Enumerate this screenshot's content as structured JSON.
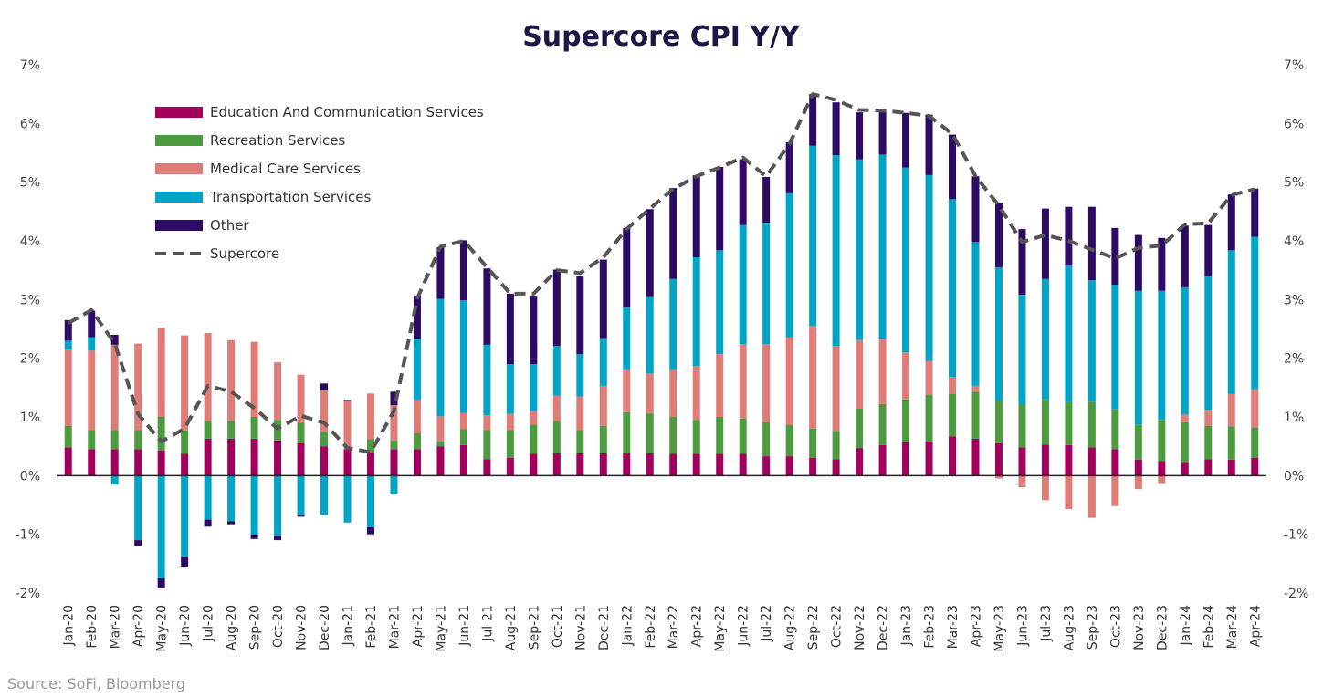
{
  "chart_data": {
    "type": "bar",
    "stacked": true,
    "title": "Supercore CPI Y/Y",
    "source": "Source: SoFi, Bloomberg",
    "ylim": [
      -2,
      7
    ],
    "yticks": [
      -2,
      -1,
      0,
      1,
      2,
      3,
      4,
      5,
      6,
      7
    ],
    "ytick_labels": [
      "-2%",
      "-1%",
      "0%",
      "1%",
      "2%",
      "3%",
      "4%",
      "5%",
      "6%",
      "7%"
    ],
    "grid": false,
    "legend_position": "top-left",
    "categories": [
      "Jan-20",
      "Feb-20",
      "Mar-20",
      "Apr-20",
      "May-20",
      "Jun-20",
      "Jul-20",
      "Aug-20",
      "Sep-20",
      "Oct-20",
      "Nov-20",
      "Dec-20",
      "Jan-21",
      "Feb-21",
      "Mar-21",
      "Apr-21",
      "May-21",
      "Jun-21",
      "Jul-21",
      "Aug-21",
      "Sep-21",
      "Oct-21",
      "Nov-21",
      "Dec-21",
      "Jan-22",
      "Feb-22",
      "Mar-22",
      "Apr-22",
      "May-22",
      "Jun-22",
      "Jul-22",
      "Aug-22",
      "Sep-22",
      "Oct-22",
      "Nov-22",
      "Dec-22",
      "Jan-23",
      "Feb-23",
      "Mar-23",
      "Apr-23",
      "May-23",
      "Jun-23",
      "Jul-23",
      "Aug-23",
      "Sep-23",
      "Oct-23",
      "Nov-23",
      "Dec-23",
      "Jan-24",
      "Feb-24",
      "Mar-24",
      "Apr-24"
    ],
    "series": [
      {
        "name": "Education And Communication Services",
        "color": "#a3005e",
        "values": [
          0.48,
          0.45,
          0.45,
          0.45,
          0.43,
          0.37,
          0.63,
          0.63,
          0.63,
          0.6,
          0.55,
          0.5,
          0.45,
          0.4,
          0.45,
          0.45,
          0.5,
          0.52,
          0.28,
          0.3,
          0.37,
          0.38,
          0.38,
          0.38,
          0.38,
          0.38,
          0.37,
          0.37,
          0.37,
          0.37,
          0.33,
          0.33,
          0.3,
          0.28,
          0.47,
          0.52,
          0.57,
          0.58,
          0.67,
          0.63,
          0.55,
          0.48,
          0.53,
          0.52,
          0.48,
          0.45,
          0.27,
          0.25,
          0.23,
          0.28,
          0.27,
          0.3
        ]
      },
      {
        "name": "Recreation Services",
        "color": "#4d9b3f",
        "values": [
          0.37,
          0.33,
          0.33,
          0.33,
          0.57,
          0.4,
          0.3,
          0.3,
          0.37,
          0.35,
          0.35,
          0.25,
          0.0,
          0.22,
          0.15,
          0.27,
          0.08,
          0.27,
          0.5,
          0.48,
          0.5,
          0.55,
          0.4,
          0.47,
          0.7,
          0.68,
          0.63,
          0.58,
          0.63,
          0.6,
          0.58,
          0.53,
          0.5,
          0.48,
          0.67,
          0.7,
          0.73,
          0.8,
          0.73,
          0.8,
          0.73,
          0.73,
          0.77,
          0.73,
          0.78,
          0.68,
          0.6,
          0.7,
          0.68,
          0.57,
          0.57,
          0.52
        ]
      },
      {
        "name": "Medical Care Services",
        "color": "#e07c78",
        "values": [
          1.3,
          1.35,
          1.45,
          1.47,
          1.52,
          1.62,
          1.5,
          1.38,
          1.28,
          0.98,
          0.82,
          0.7,
          0.82,
          0.78,
          0.6,
          0.57,
          0.43,
          0.28,
          0.25,
          0.27,
          0.23,
          0.43,
          0.57,
          0.68,
          0.72,
          0.68,
          0.8,
          0.92,
          1.07,
          1.27,
          1.33,
          1.5,
          1.75,
          1.45,
          1.17,
          1.1,
          0.8,
          0.57,
          0.28,
          0.1,
          -0.05,
          -0.2,
          -0.42,
          -0.57,
          -0.72,
          -0.52,
          -0.23,
          -0.13,
          0.13,
          0.27,
          0.55,
          0.65
        ]
      },
      {
        "name": "Transportation Services",
        "color": "#00a4c6",
        "values": [
          0.15,
          0.23,
          -0.15,
          -1.1,
          -1.75,
          -1.38,
          -0.75,
          -0.78,
          -1.0,
          -1.02,
          -0.67,
          -0.67,
          -0.8,
          -0.88,
          -0.32,
          1.03,
          2.0,
          1.92,
          1.2,
          0.85,
          0.8,
          0.85,
          0.72,
          0.8,
          1.07,
          1.3,
          1.55,
          1.85,
          1.77,
          2.03,
          2.07,
          2.45,
          3.07,
          3.25,
          3.08,
          3.15,
          3.15,
          3.17,
          3.03,
          2.45,
          2.27,
          1.87,
          2.05,
          2.33,
          2.07,
          2.12,
          2.28,
          2.2,
          2.17,
          2.28,
          2.45,
          2.6
        ]
      },
      {
        "name": "Other",
        "color": "#2d0a64",
        "values": [
          0.35,
          0.45,
          0.17,
          -0.1,
          -0.17,
          -0.17,
          -0.12,
          -0.05,
          -0.08,
          -0.08,
          -0.03,
          0.12,
          0.02,
          -0.12,
          0.23,
          0.75,
          0.88,
          1.02,
          1.3,
          1.2,
          1.15,
          1.3,
          1.33,
          1.35,
          1.35,
          1.5,
          1.55,
          1.4,
          1.42,
          1.12,
          0.78,
          0.87,
          0.88,
          0.9,
          0.8,
          0.72,
          0.93,
          1.03,
          1.1,
          1.12,
          1.1,
          1.12,
          1.2,
          1.0,
          1.25,
          0.97,
          0.95,
          0.9,
          1.05,
          0.87,
          0.95,
          0.82
        ]
      },
      {
        "name": "Supercore",
        "type": "line",
        "style": "dashed",
        "color": "#555555",
        "values": [
          2.6,
          2.82,
          2.25,
          1.05,
          0.58,
          0.8,
          1.53,
          1.43,
          1.15,
          0.8,
          1.02,
          0.9,
          0.47,
          0.4,
          1.1,
          3.02,
          3.9,
          4.0,
          3.55,
          3.1,
          3.1,
          3.5,
          3.45,
          3.72,
          4.2,
          4.55,
          4.88,
          5.1,
          5.25,
          5.42,
          5.1,
          5.65,
          6.5,
          6.4,
          6.23,
          6.22,
          6.18,
          6.13,
          5.82,
          5.1,
          4.6,
          3.98,
          4.1,
          4.0,
          3.85,
          3.7,
          3.88,
          3.92,
          4.28,
          4.3,
          4.78,
          4.88
        ]
      }
    ]
  }
}
